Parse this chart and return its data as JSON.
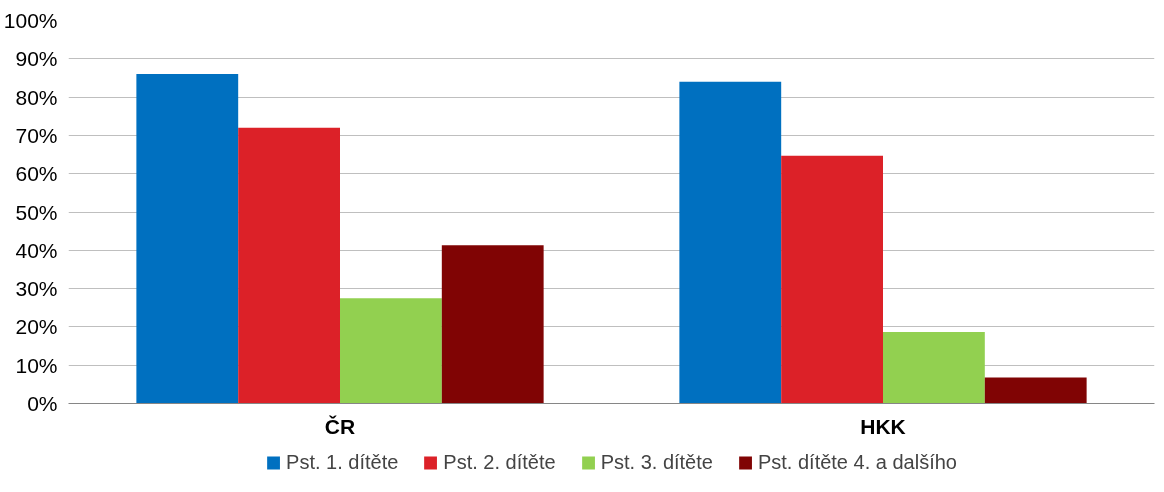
{
  "chart_data": {
    "type": "bar",
    "categories": [
      "ČR",
      "HKK"
    ],
    "series": [
      {
        "name": "Pst. 1. dítěte",
        "color": "#0070c0",
        "values": [
          86,
          84
        ]
      },
      {
        "name": "Pst. 2. dítěte",
        "color": "#dc2128",
        "values": [
          72,
          64.7
        ]
      },
      {
        "name": "Pst. 3. dítěte",
        "color": "#92d050",
        "values": [
          27.5,
          18.7
        ]
      },
      {
        "name": "Pst. dítěte 4. a dalšího",
        "color": "#800404",
        "values": [
          41.3,
          6.8
        ]
      }
    ],
    "ylim": [
      0,
      100
    ],
    "yticks": [
      {
        "value": 0,
        "label": "0%"
      },
      {
        "value": 10,
        "label": "10%"
      },
      {
        "value": 20,
        "label": "20%"
      },
      {
        "value": 30,
        "label": "30%"
      },
      {
        "value": 40,
        "label": "40%"
      },
      {
        "value": 50,
        "label": "50%"
      },
      {
        "value": 60,
        "label": "60%"
      },
      {
        "value": 70,
        "label": "70%"
      },
      {
        "value": 80,
        "label": "80%"
      },
      {
        "value": 90,
        "label": "90%"
      },
      {
        "value": 100,
        "label": "100%"
      }
    ],
    "grid": "y",
    "legend": "bottom"
  }
}
